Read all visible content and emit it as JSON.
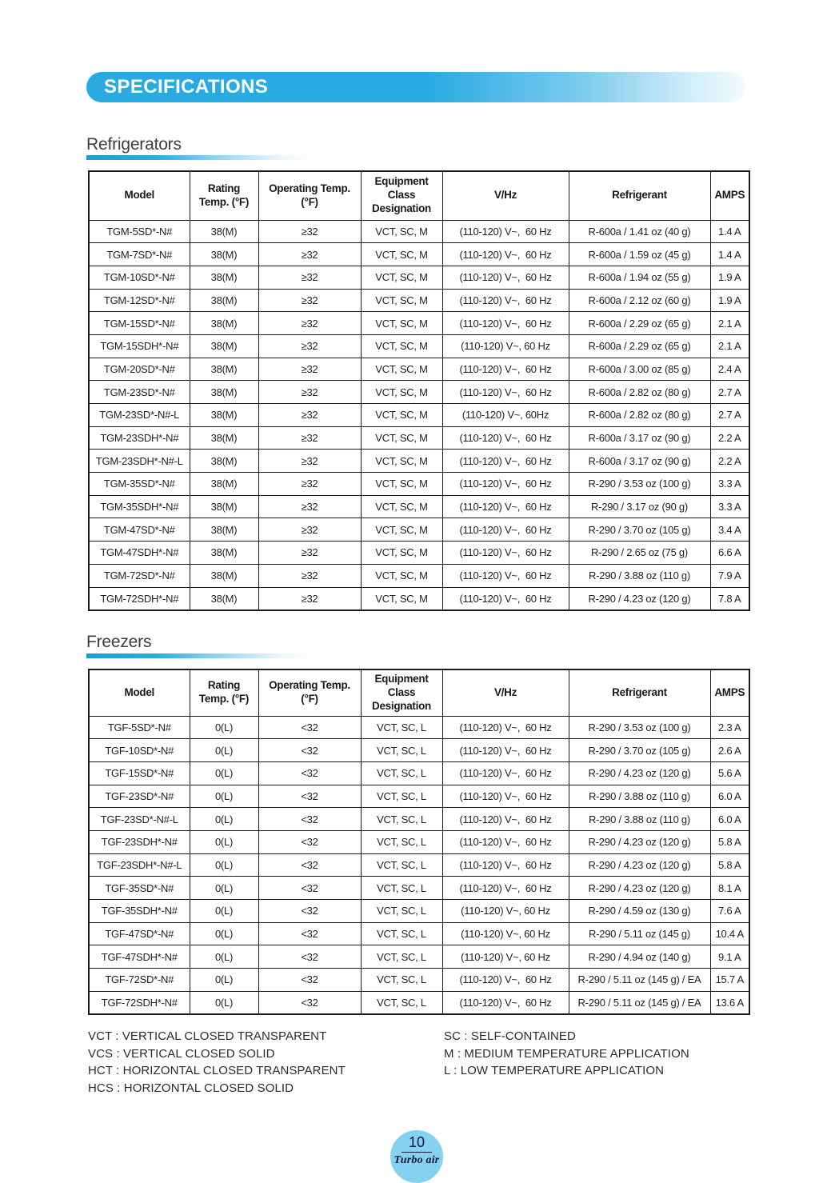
{
  "colors": {
    "accent_blue": "#29abe2",
    "underline_blue": "#1b9dd9",
    "bubble_blue": "#85d2f0",
    "table_border": "#1a1a1a",
    "brand_navy": "#14143c"
  },
  "header": {
    "title": "SPECIFICATIONS"
  },
  "sections": [
    {
      "title": "Refrigerators",
      "table": {
        "columns": [
          "Model",
          "Rating\nTemp. (°F)",
          "Operating Temp.\n(°F)",
          "Equipment Class\nDesignation",
          "V/Hz",
          "Refrigerant",
          "AMPS"
        ],
        "rows": [
          [
            "TGM-5SD*-N#",
            "38(M)",
            "≥32",
            "VCT, SC, M",
            "(110-120) V~,  60 Hz",
            "R-600a / 1.41 oz (40 g)",
            "1.4 A"
          ],
          [
            "TGM-7SD*-N#",
            "38(M)",
            "≥32",
            "VCT, SC, M",
            "(110-120) V~,  60 Hz",
            "R-600a / 1.59 oz (45 g)",
            "1.4 A"
          ],
          [
            "TGM-10SD*-N#",
            "38(M)",
            "≥32",
            "VCT, SC, M",
            "(110-120) V~,  60 Hz",
            "R-600a / 1.94 oz (55 g)",
            "1.9 A"
          ],
          [
            "TGM-12SD*-N#",
            "38(M)",
            "≥32",
            "VCT, SC, M",
            "(110-120) V~,  60 Hz",
            "R-600a / 2.12 oz (60 g)",
            "1.9 A"
          ],
          [
            "TGM-15SD*-N#",
            "38(M)",
            "≥32",
            "VCT, SC, M",
            "(110-120) V~,  60 Hz",
            "R-600a / 2.29 oz (65 g)",
            "2.1 A"
          ],
          [
            "TGM-15SDH*-N#",
            "38(M)",
            "≥32",
            "VCT, SC, M",
            "(110-120) V~, 60 Hz",
            "R-600a / 2.29 oz (65 g)",
            "2.1 A"
          ],
          [
            "TGM-20SD*-N#",
            "38(M)",
            "≥32",
            "VCT, SC, M",
            "(110-120) V~,  60 Hz",
            "R-600a / 3.00 oz (85 g)",
            "2.4 A"
          ],
          [
            "TGM-23SD*-N#",
            "38(M)",
            "≥32",
            "VCT, SC, M",
            "(110-120) V~,  60 Hz",
            "R-600a / 2.82 oz (80 g)",
            "2.7 A"
          ],
          [
            "TGM-23SD*-N#-L",
            "38(M)",
            "≥32",
            "VCT, SC, M",
            "(110-120) V~, 60Hz",
            "R-600a / 2.82 oz (80 g)",
            "2.7 A"
          ],
          [
            "TGM-23SDH*-N#",
            "38(M)",
            "≥32",
            "VCT, SC, M",
            "(110-120) V~,  60 Hz",
            "R-600a / 3.17 oz (90 g)",
            "2.2 A"
          ],
          [
            "TGM-23SDH*-N#-L",
            "38(M)",
            "≥32",
            "VCT, SC, M",
            "(110-120) V~,  60 Hz",
            "R-600a / 3.17 oz (90 g)",
            "2.2 A"
          ],
          [
            "TGM-35SD*-N#",
            "38(M)",
            "≥32",
            "VCT, SC, M",
            "(110-120) V~,  60 Hz",
            "R-290 / 3.53 oz (100 g)",
            "3.3 A"
          ],
          [
            "TGM-35SDH*-N#",
            "38(M)",
            "≥32",
            "VCT, SC, M",
            "(110-120) V~,  60 Hz",
            "R-290 / 3.17 oz (90 g)",
            "3.3 A"
          ],
          [
            "TGM-47SD*-N#",
            "38(M)",
            "≥32",
            "VCT, SC, M",
            "(110-120) V~,  60 Hz",
            "R-290 / 3.70 oz (105 g)",
            "3.4 A"
          ],
          [
            "TGM-47SDH*-N#",
            "38(M)",
            "≥32",
            "VCT, SC, M",
            "(110-120) V~,  60 Hz",
            "R-290 / 2.65 oz (75 g)",
            "6.6 A"
          ],
          [
            "TGM-72SD*-N#",
            "38(M)",
            "≥32",
            "VCT, SC, M",
            "(110-120) V~,  60 Hz",
            "R-290 / 3.88 oz (110 g)",
            "7.9 A"
          ],
          [
            "TGM-72SDH*-N#",
            "38(M)",
            "≥32",
            "VCT, SC, M",
            "(110-120) V~,  60 Hz",
            "R-290 / 4.23 oz (120 g)",
            "7.8 A"
          ]
        ]
      }
    },
    {
      "title": "Freezers",
      "table": {
        "columns": [
          "Model",
          "Rating\nTemp. (°F)",
          "Operating Temp.\n(°F)",
          "Equipment Class\nDesignation",
          "V/Hz",
          "Refrigerant",
          "AMPS"
        ],
        "rows": [
          [
            "TGF-5SD*-N#",
            "0(L)",
            "<32",
            "VCT, SC, L",
            "(110-120) V~,  60 Hz",
            "R-290 / 3.53 oz (100 g)",
            "2.3 A"
          ],
          [
            "TGF-10SD*-N#",
            "0(L)",
            "<32",
            "VCT, SC, L",
            "(110-120) V~,  60 Hz",
            "R-290 / 3.70 oz (105 g)",
            "2.6 A"
          ],
          [
            "TGF-15SD*-N#",
            "0(L)",
            "<32",
            "VCT, SC, L",
            "(110-120) V~,  60 Hz",
            "R-290 / 4.23 oz (120 g)",
            "5.6 A"
          ],
          [
            "TGF-23SD*-N#",
            "0(L)",
            "<32",
            "VCT, SC, L",
            "(110-120) V~,  60 Hz",
            "R-290 / 3.88 oz (110 g)",
            "6.0 A"
          ],
          [
            "TGF-23SD*-N#-L",
            "0(L)",
            "<32",
            "VCT, SC, L",
            "(110-120) V~,  60 Hz",
            "R-290 / 3.88 oz (110 g)",
            "6.0 A"
          ],
          [
            "TGF-23SDH*-N#",
            "0(L)",
            "<32",
            "VCT, SC, L",
            "(110-120) V~,  60 Hz",
            "R-290 / 4.23 oz (120 g)",
            "5.8 A"
          ],
          [
            "TGF-23SDH*-N#-L",
            "0(L)",
            "<32",
            "VCT, SC, L",
            "(110-120) V~,  60 Hz",
            "R-290 / 4.23 oz (120 g)",
            "5.8 A"
          ],
          [
            "TGF-35SD*-N#",
            "0(L)",
            "<32",
            "VCT, SC, L",
            "(110-120) V~,  60 Hz",
            "R-290 / 4.23 oz (120 g)",
            "8.1 A"
          ],
          [
            "TGF-35SDH*-N#",
            "0(L)",
            "<32",
            "VCT, SC, L",
            "(110-120) V~, 60 Hz",
            "R-290 / 4.59 oz (130 g)",
            "7.6 A"
          ],
          [
            "TGF-47SD*-N#",
            "0(L)",
            "<32",
            "VCT, SC, L",
            "(110-120) V~, 60 Hz",
            "R-290 / 5.11 oz (145 g)",
            "10.4 A"
          ],
          [
            "TGF-47SDH*-N#",
            "0(L)",
            "<32",
            "VCT, SC, L",
            "(110-120) V~, 60 Hz",
            "R-290 / 4.94 oz (140 g)",
            "9.1 A"
          ],
          [
            "TGF-72SD*-N#",
            "0(L)",
            "<32",
            "VCT, SC, L",
            "(110-120) V~,  60 Hz",
            "R-290 / 5.11 oz (145 g) / EA",
            "15.7 A"
          ],
          [
            "TGF-72SDH*-N#",
            "0(L)",
            "<32",
            "VCT, SC, L",
            "(110-120) V~,  60 Hz",
            "R-290 / 5.11 oz (145 g) / EA",
            "13.6 A"
          ]
        ]
      }
    }
  ],
  "legend": {
    "left": [
      "VCT : VERTICAL CLOSED TRANSPARENT",
      "VCS : VERTICAL CLOSED SOLID",
      "HCT : HORIZONTAL CLOSED TRANSPARENT",
      "HCS : HORIZONTAL CLOSED SOLID"
    ],
    "right": [
      "SC : SELF-CONTAINED",
      "M : MEDIUM TEMPERATURE APPLICATION",
      "L : LOW TEMPERATURE APPLICATION"
    ]
  },
  "footer": {
    "page_number": "10",
    "brand": "Turbo air"
  }
}
